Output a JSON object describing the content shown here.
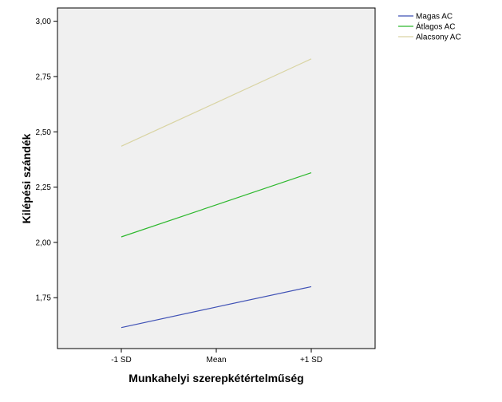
{
  "chart_data": {
    "type": "line",
    "title": "",
    "xlabel": "Munkahelyi szerepkétértelműség",
    "ylabel": "Kilépési szándék",
    "categories": [
      "-1 SD",
      "Mean",
      "+1 SD"
    ],
    "ylim": [
      1.52,
      3.06
    ],
    "yticks": [
      "1,75",
      "2,00",
      "2,25",
      "2,50",
      "2,75",
      "3,00"
    ],
    "ytick_values": [
      1.75,
      2.0,
      2.25,
      2.5,
      2.75,
      3.0
    ],
    "grid": false,
    "legend_position": "top-right",
    "plot_background": "#f0f0f0",
    "series": [
      {
        "name": "Magas AC",
        "color": "#3f51b5",
        "values": [
          1.615,
          1.708,
          1.8
        ]
      },
      {
        "name": "Átlagos AC",
        "color": "#2eb82e",
        "values": [
          2.025,
          2.17,
          2.315
        ]
      },
      {
        "name": "Alacsony AC",
        "color": "#d9d4a3",
        "values": [
          2.435,
          2.632,
          2.83
        ]
      }
    ]
  }
}
